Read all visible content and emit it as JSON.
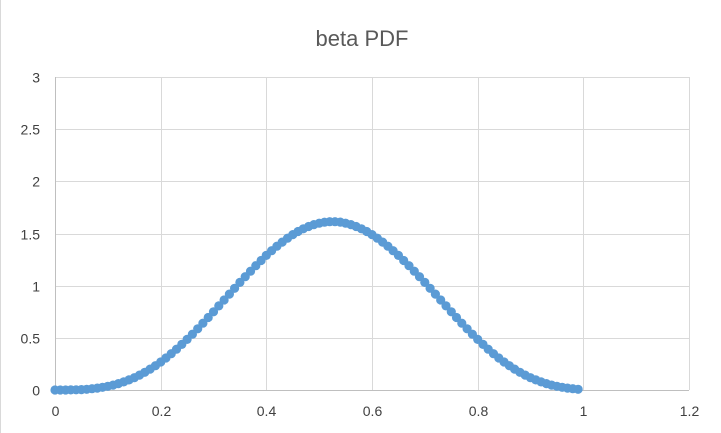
{
  "chart_data": {
    "type": "scatter",
    "title": "beta PDF",
    "xlabel": "",
    "ylabel": "",
    "xlim": [
      0,
      1.2
    ],
    "ylim": [
      0,
      3
    ],
    "x_ticks": [
      0,
      0.2,
      0.4,
      0.6,
      0.8,
      1,
      1.2
    ],
    "y_ticks": [
      0,
      0.5,
      1,
      1.5,
      2,
      2.5,
      3
    ],
    "x_tick_labels": [
      "0",
      "0.2",
      "0.4",
      "0.6",
      "0.8",
      "1",
      "1.2"
    ],
    "y_tick_labels": [
      "0",
      "0.5",
      "1",
      "1.5",
      "2",
      "2.5",
      "3"
    ],
    "grid": true,
    "legend": "none",
    "marker_color": "#5b9bd5",
    "series": [
      {
        "x": [
          0.0,
          0.01,
          0.02,
          0.03,
          0.04,
          0.05,
          0.06,
          0.07,
          0.08,
          0.09,
          0.1,
          0.11,
          0.12,
          0.13,
          0.14,
          0.15,
          0.16,
          0.17,
          0.18,
          0.19,
          0.2,
          0.21,
          0.22,
          0.23,
          0.24,
          0.25,
          0.26,
          0.27,
          0.28,
          0.29,
          0.3,
          0.31,
          0.32,
          0.33,
          0.34,
          0.35,
          0.36,
          0.37,
          0.38,
          0.39,
          0.4,
          0.41,
          0.42,
          0.43,
          0.44,
          0.45,
          0.46,
          0.47,
          0.48,
          0.49,
          0.5,
          0.51,
          0.52,
          0.53,
          0.54,
          0.55,
          0.56,
          0.57,
          0.58,
          0.59,
          0.6,
          0.61,
          0.62,
          0.63,
          0.64,
          0.65,
          0.66,
          0.67,
          0.68,
          0.69,
          0.7,
          0.71,
          0.72,
          0.73,
          0.74,
          0.75,
          0.76,
          0.77,
          0.78,
          0.79,
          0.8,
          0.81,
          0.82,
          0.83,
          0.84,
          0.85,
          0.86,
          0.87,
          0.88,
          0.89,
          0.9,
          0.91,
          0.92,
          0.93,
          0.94,
          0.95,
          0.96,
          0.97,
          0.98,
          0.99
        ],
        "y": [
          0.0,
          0.0,
          0.0,
          0.001,
          0.002,
          0.004,
          0.007,
          0.012,
          0.018,
          0.026,
          0.035,
          0.047,
          0.061,
          0.078,
          0.097,
          0.118,
          0.143,
          0.17,
          0.2,
          0.233,
          0.268,
          0.307,
          0.348,
          0.391,
          0.437,
          0.485,
          0.535,
          0.587,
          0.64,
          0.695,
          0.75,
          0.806,
          0.863,
          0.919,
          0.975,
          1.031,
          1.086,
          1.139,
          1.191,
          1.241,
          1.29,
          1.335,
          1.378,
          1.418,
          1.455,
          1.489,
          1.519,
          1.545,
          1.567,
          1.585,
          1.599,
          1.608,
          1.613,
          1.613,
          1.609,
          1.599,
          1.585,
          1.567,
          1.545,
          1.519,
          1.489,
          1.455,
          1.418,
          1.378,
          1.335,
          1.29,
          1.241,
          1.191,
          1.139,
          1.086,
          1.031,
          0.975,
          0.919,
          0.863,
          0.806,
          0.75,
          0.695,
          0.64,
          0.587,
          0.535,
          0.485,
          0.437,
          0.391,
          0.348,
          0.307,
          0.268,
          0.233,
          0.2,
          0.17,
          0.143,
          0.118,
          0.097,
          0.078,
          0.061,
          0.047,
          0.035,
          0.026,
          0.018,
          0.012,
          0.007
        ]
      }
    ]
  }
}
